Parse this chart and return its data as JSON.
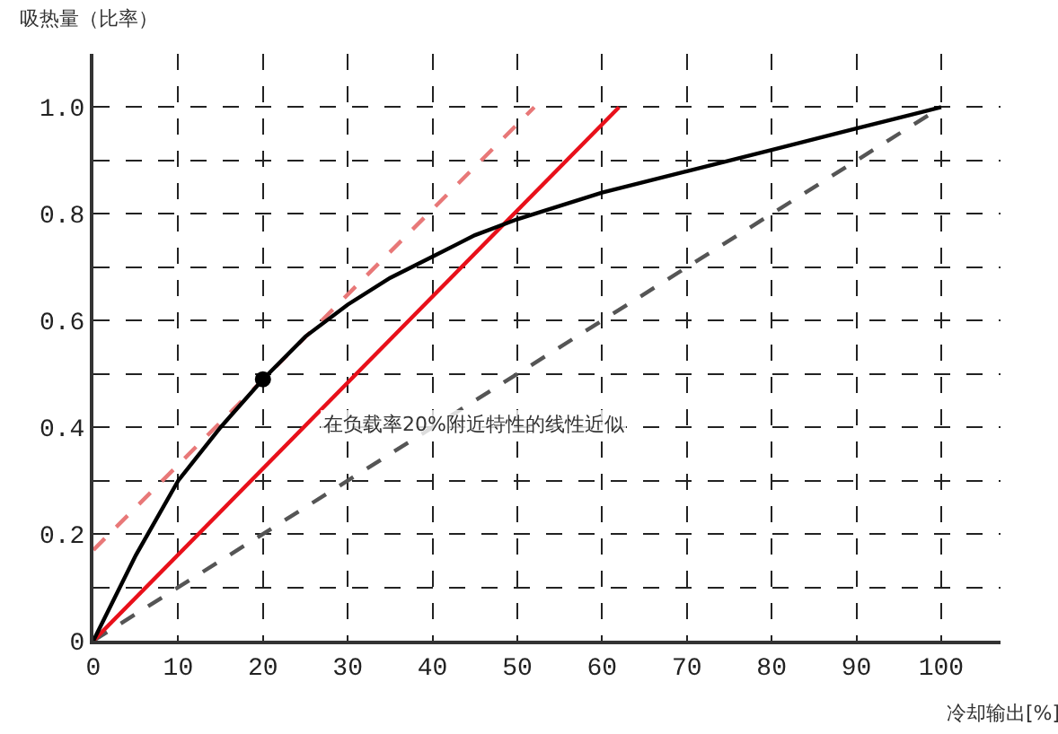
{
  "chart_data": {
    "type": "line",
    "xlabel": "冷却输出[%]",
    "ylabel": "吸热量（比率）",
    "annotations": [
      "在负载率20%附近特性的线性近似"
    ],
    "xlim": [
      0,
      107
    ],
    "ylim": [
      0,
      1.1
    ],
    "xticks": [
      0,
      10,
      20,
      30,
      40,
      50,
      60,
      70,
      80,
      90,
      100
    ],
    "yticks": [
      0,
      {
        "value": 0.1,
        "label": null
      },
      0.2,
      {
        "value": 0.3,
        "label": null
      },
      0.4,
      {
        "value": 0.5,
        "label": null
      },
      0.6,
      {
        "value": 0.7,
        "label": null
      },
      0.8,
      {
        "value": 0.9,
        "label": null
      },
      {
        "value": 1,
        "label": "1.0"
      }
    ],
    "grid": true,
    "marker": "none",
    "series": [
      {
        "color": "#555555",
        "line_style": "dashed",
        "x": [
          0,
          100
        ],
        "values": [
          0,
          1
        ]
      },
      {
        "color": "#e87878",
        "line_style": "dashed",
        "x": [
          0,
          52
        ],
        "values": [
          0.17,
          1
        ]
      },
      {
        "color": "#e8101a",
        "line_style": "solid",
        "x": [
          0,
          62
        ],
        "values": [
          0,
          1
        ]
      },
      {
        "color": "#000000",
        "line_style": "solid",
        "x": [
          0,
          5,
          10,
          15,
          20,
          25,
          30,
          35,
          40,
          45,
          50,
          60,
          70,
          80,
          90,
          100
        ],
        "values": [
          0,
          0.16,
          0.3,
          0.4,
          0.49,
          0.57,
          0.63,
          0.68,
          0.72,
          0.76,
          0.79,
          0.84,
          0.88,
          0.92,
          0.96,
          1
        ]
      },
      {
        "type": "scatter",
        "color": "#000000",
        "marker": "circle",
        "x": [
          20
        ],
        "values": [
          0.49
        ]
      }
    ]
  }
}
